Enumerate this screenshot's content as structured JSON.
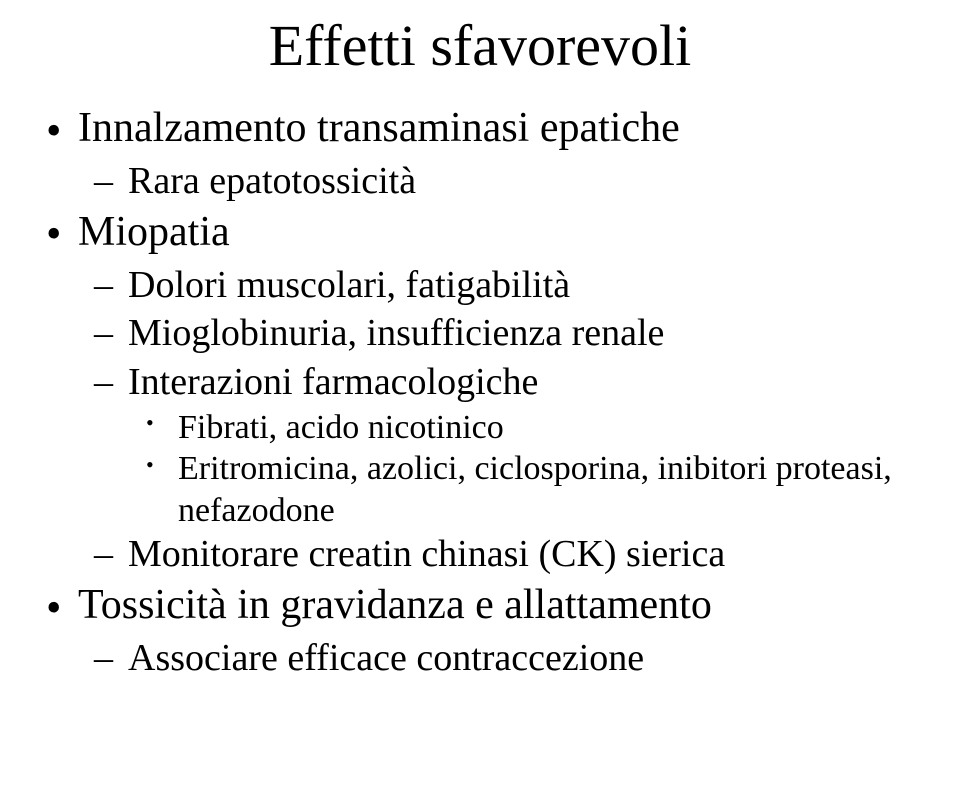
{
  "slide": {
    "title": "Effetti sfavorevoli",
    "title_fontsize": 58,
    "l1_fontsize": 42,
    "l2_fontsize": 38,
    "l3_fontsize": 34,
    "text_color": "#000000",
    "background_color": "#ffffff",
    "items": {
      "i1": "Innalzamento transaminasi epatiche",
      "i1a": "Rara epatotossicità",
      "i2": "Miopatia",
      "i2a": "Dolori muscolari, fatigabilità",
      "i2b": "Mioglobinuria, insufficienza renale",
      "i2c": "Interazioni farmacologiche",
      "i2c1": "Fibrati, acido nicotinico",
      "i2c2": "Eritromicina, azolici, ciclosporina, inibitori proteasi, nefazodone",
      "i2d": "Monitorare creatin chinasi (CK) sierica",
      "i3": "Tossicità in gravidanza e allattamento",
      "i3a": "Associare efficace contraccezione"
    }
  }
}
